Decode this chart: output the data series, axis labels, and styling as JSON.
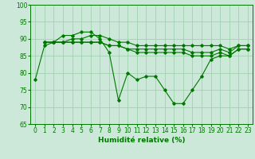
{
  "xlabel": "Humidité relative (%)",
  "xlim": [
    -0.5,
    23.5
  ],
  "ylim": [
    65,
    100
  ],
  "yticks": [
    65,
    70,
    75,
    80,
    85,
    90,
    95,
    100
  ],
  "xticks": [
    0,
    1,
    2,
    3,
    4,
    5,
    6,
    7,
    8,
    9,
    10,
    11,
    12,
    13,
    14,
    15,
    16,
    17,
    18,
    19,
    20,
    21,
    22,
    23
  ],
  "background_color": "#cce8d8",
  "grid_color": "#99ccaa",
  "line_color": "#007700",
  "lines": [
    [
      78,
      88,
      89,
      91,
      91,
      92,
      92,
      90,
      86,
      72,
      80,
      78,
      79,
      79,
      75,
      71,
      71,
      75,
      79,
      84,
      85,
      85,
      87,
      87
    ],
    [
      null,
      89,
      89,
      89,
      89,
      89,
      89,
      89,
      88,
      88,
      87,
      86,
      86,
      86,
      86,
      86,
      86,
      85,
      85,
      85,
      86,
      85,
      87,
      87
    ],
    [
      null,
      89,
      89,
      89,
      89,
      89,
      89,
      89,
      88,
      88,
      87,
      87,
      87,
      87,
      87,
      87,
      87,
      86,
      86,
      86,
      87,
      86,
      88,
      88
    ],
    [
      null,
      89,
      89,
      89,
      90,
      90,
      91,
      91,
      90,
      89,
      89,
      88,
      88,
      88,
      88,
      88,
      88,
      88,
      88,
      88,
      88,
      87,
      88,
      88
    ]
  ]
}
